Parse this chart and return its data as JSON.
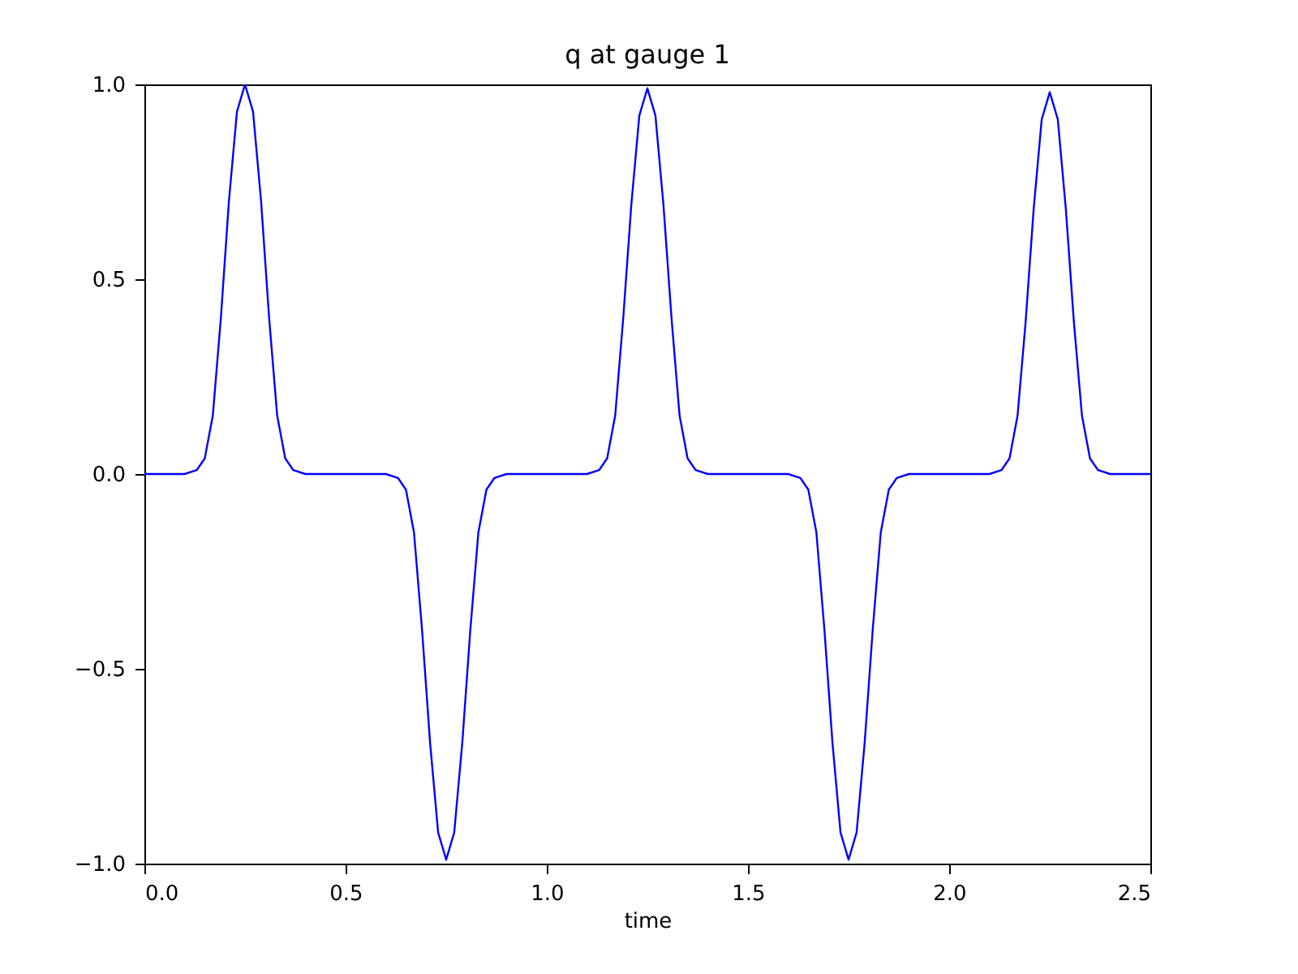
{
  "chart_data": {
    "type": "line",
    "title": "q at gauge 1",
    "xlabel": "time",
    "xlim": [
      0,
      2.5
    ],
    "ylim": [
      -1,
      1
    ],
    "xticks": [
      {
        "value": 0,
        "label": "0.0"
      },
      {
        "value": 0.5,
        "label": "0.5"
      },
      {
        "value": 1,
        "label": "1.0"
      },
      {
        "value": 1.5,
        "label": "1.5"
      },
      {
        "value": 2,
        "label": "2.0"
      },
      {
        "value": 2.5,
        "label": "2.5"
      }
    ],
    "yticks": [
      {
        "value": -1,
        "label": "−1.0"
      },
      {
        "value": -0.5,
        "label": "−0.5"
      },
      {
        "value": 0,
        "label": "0.0"
      },
      {
        "value": 0.5,
        "label": "0.5"
      },
      {
        "value": 1,
        "label": "1.0"
      }
    ],
    "grid": false,
    "line_style": "solid",
    "series": [
      {
        "color": "#0000ff",
        "x": [
          0,
          0.1,
          0.13,
          0.15,
          0.17,
          0.19,
          0.21,
          0.23,
          0.25,
          0.27,
          0.29,
          0.31,
          0.33,
          0.35,
          0.37,
          0.4,
          0.6,
          0.63,
          0.65,
          0.67,
          0.69,
          0.71,
          0.73,
          0.75,
          0.77,
          0.79,
          0.81,
          0.83,
          0.85,
          0.87,
          0.9,
          1.1,
          1.13,
          1.15,
          1.17,
          1.19,
          1.21,
          1.23,
          1.25,
          1.27,
          1.29,
          1.31,
          1.33,
          1.35,
          1.37,
          1.4,
          1.6,
          1.63,
          1.65,
          1.67,
          1.69,
          1.71,
          1.73,
          1.75,
          1.77,
          1.79,
          1.81,
          1.83,
          1.85,
          1.87,
          1.9,
          2.1,
          2.13,
          2.15,
          2.17,
          2.19,
          2.21,
          2.23,
          2.25,
          2.27,
          2.29,
          2.31,
          2.33,
          2.35,
          2.37,
          2.4,
          2.5
        ],
        "values": [
          0,
          0,
          0.01,
          0.04,
          0.15,
          0.4,
          0.7,
          0.93,
          1.0,
          0.93,
          0.7,
          0.4,
          0.15,
          0.04,
          0.01,
          0,
          0,
          -0.01,
          -0.04,
          -0.15,
          -0.4,
          -0.69,
          -0.92,
          -0.99,
          -0.92,
          -0.69,
          -0.4,
          -0.15,
          -0.04,
          -0.01,
          0,
          0,
          0.01,
          0.04,
          0.15,
          0.4,
          0.69,
          0.92,
          0.99,
          0.92,
          0.69,
          0.4,
          0.15,
          0.04,
          0.01,
          0,
          0,
          -0.01,
          -0.04,
          -0.15,
          -0.4,
          -0.69,
          -0.92,
          -0.99,
          -0.92,
          -0.69,
          -0.4,
          -0.15,
          -0.04,
          -0.01,
          0,
          0,
          0.01,
          0.04,
          0.15,
          0.39,
          0.68,
          0.91,
          0.98,
          0.91,
          0.68,
          0.39,
          0.15,
          0.04,
          0.01,
          0,
          0
        ]
      }
    ]
  }
}
